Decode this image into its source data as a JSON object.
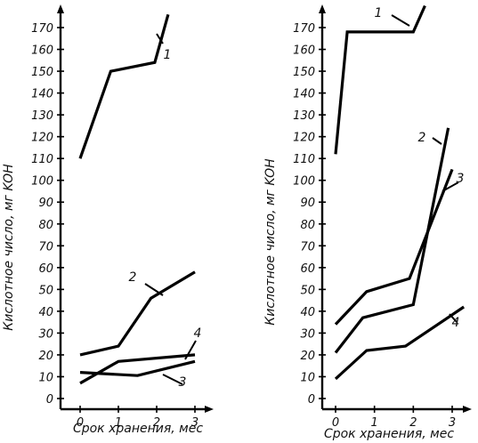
{
  "chart_data": [
    {
      "type": "line",
      "title": "",
      "ylabel": "Кислотное число, мг KOH",
      "xlabel": "Срок хранения, мес",
      "xlim": [
        0,
        3
      ],
      "ylim": [
        0,
        170
      ],
      "xticks": [
        "0",
        "1",
        "2",
        "3"
      ],
      "yticks": [
        "0",
        "10",
        "20",
        "30",
        "40",
        "50",
        "60",
        "70",
        "80",
        "90",
        "100",
        "110",
        "120",
        "130",
        "140",
        "150",
        "160",
        "170"
      ],
      "grid": false,
      "series": [
        {
          "name": "1",
          "points": [
            [
              0,
              110
            ],
            [
              0.8,
              150
            ],
            [
              1.95,
              154
            ],
            [
              2.3,
              176
            ]
          ]
        },
        {
          "name": "2",
          "points": [
            [
              0,
              20
            ],
            [
              1.0,
              24
            ],
            [
              1.85,
              46
            ],
            [
              3.0,
              58
            ]
          ]
        },
        {
          "name": "3",
          "points": [
            [
              0,
              12
            ],
            [
              1.5,
              10.5
            ],
            [
              3.0,
              17
            ]
          ]
        },
        {
          "name": "4",
          "points": [
            [
              0,
              7
            ],
            [
              1.0,
              17
            ],
            [
              3.0,
              20
            ]
          ]
        }
      ]
    },
    {
      "type": "line",
      "title": "",
      "ylabel": "Кислотное число, мг KOH",
      "xlabel": "Срок хранения, мес",
      "xlim": [
        0,
        3
      ],
      "ylim": [
        0,
        170
      ],
      "xticks": [
        "0",
        "1",
        "2",
        "3"
      ],
      "yticks": [
        "0",
        "10",
        "20",
        "30",
        "40",
        "50",
        "60",
        "70",
        "80",
        "90",
        "100",
        "110",
        "120",
        "130",
        "140",
        "150",
        "160",
        "170"
      ],
      "grid": false,
      "series": [
        {
          "name": "1",
          "points": [
            [
              0,
              112
            ],
            [
              0.3,
              168
            ],
            [
              2.0,
              168
            ],
            [
              2.3,
              180
            ]
          ]
        },
        {
          "name": "2",
          "points": [
            [
              0,
              21
            ],
            [
              0.7,
              37
            ],
            [
              2.0,
              43
            ],
            [
              2.9,
              124
            ]
          ]
        },
        {
          "name": "3",
          "points": [
            [
              0,
              34
            ],
            [
              0.8,
              49
            ],
            [
              1.9,
              55
            ],
            [
              3.0,
              105
            ]
          ]
        },
        {
          "name": "4",
          "points": [
            [
              0,
              9
            ],
            [
              0.8,
              22
            ],
            [
              1.8,
              24
            ],
            [
              3.3,
              42
            ]
          ]
        }
      ]
    }
  ]
}
